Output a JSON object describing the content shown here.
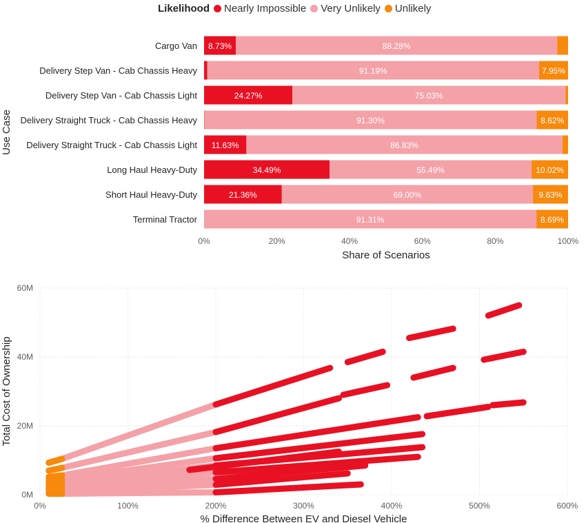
{
  "legend": {
    "title": "Likelihood",
    "items": [
      {
        "label": "Nearly Impossible",
        "color": "#E81123"
      },
      {
        "label": "Very Unlikely",
        "color": "#F4A1A8"
      },
      {
        "label": "Unlikely",
        "color": "#F7890C"
      }
    ]
  },
  "chart_data": [
    {
      "type": "bar",
      "orientation": "horizontal-stacked-100",
      "ylabel": "Use Case",
      "xlabel": "Share of Scenarios",
      "x_ticks": [
        "0%",
        "20%",
        "40%",
        "60%",
        "80%",
        "100%"
      ],
      "xlim": [
        0,
        100
      ],
      "categories": [
        "Cargo Van",
        "Delivery Step Van - Cab Chassis Heavy",
        "Delivery Step Van - Cab Chassis Light",
        "Delivery Straight Truck - Cab Chassis Heavy",
        "Delivery Straight Truck - Cab Chassis Light",
        "Long Haul Heavy-Duty",
        "Short Haul Heavy-Duty",
        "Terminal Tractor"
      ],
      "series": [
        {
          "name": "Nearly Impossible",
          "color": "#E81123",
          "values": [
            8.73,
            0.86,
            24.27,
            0.08,
            11.63,
            34.49,
            21.36,
            0.0
          ],
          "labels": [
            "8.73%",
            "",
            "24.27%",
            "",
            "11.63%",
            "34.49%",
            "21.36%",
            ""
          ]
        },
        {
          "name": "Very Unlikely",
          "color": "#F4A1A8",
          "values": [
            88.28,
            91.19,
            75.03,
            91.3,
            86.83,
            55.49,
            69.0,
            91.31
          ],
          "labels": [
            "88.28%",
            "91.19%",
            "75.03%",
            "91.30%",
            "86.83%",
            "55.49%",
            "69.00%",
            "91.31%"
          ]
        },
        {
          "name": "Unlikely",
          "color": "#F7890C",
          "values": [
            2.99,
            7.95,
            0.7,
            8.62,
            1.54,
            10.02,
            9.63,
            8.69
          ],
          "labels": [
            "",
            "7.95%",
            "",
            "8.62%",
            "",
            "10.02%",
            "9.63%",
            "8.69%"
          ]
        }
      ]
    },
    {
      "type": "scatter",
      "xlabel": "% Difference Between EV and Diesel Vehicle",
      "ylabel": "Total Cost of Ownership",
      "xlim": [
        0,
        600
      ],
      "ylim": [
        0,
        60000000
      ],
      "x_ticks": [
        "0%",
        "100%",
        "200%",
        "300%",
        "400%",
        "500%",
        "600%"
      ],
      "y_ticks": [
        "0M",
        "20M",
        "40M",
        "60M"
      ],
      "grid": true,
      "series": [
        {
          "name": "Unlikely",
          "color": "#F7890C",
          "segments": [
            [
              10,
              9300000,
              25,
              10400000
            ],
            [
              10,
              7000000,
              25,
              7800000
            ],
            [
              10,
              5200000,
              25,
              5600000
            ],
            [
              10,
              4200000,
              25,
              4400000
            ],
            [
              10,
              3400000,
              25,
              3500000
            ],
            [
              10,
              2600000,
              25,
              2600000
            ],
            [
              10,
              1800000,
              25,
              1800000
            ],
            [
              10,
              1000000,
              25,
              900000
            ],
            [
              10,
              300000,
              25,
              300000
            ]
          ]
        },
        {
          "name": "Very Unlikely",
          "color": "#F4A1A8",
          "segments": [
            [
              25,
              10400000,
              200,
              26200000
            ],
            [
              25,
              7800000,
              200,
              18200000
            ],
            [
              25,
              5600000,
              200,
              13500000
            ],
            [
              25,
              4400000,
              200,
              10600000
            ],
            [
              25,
              3500000,
              200,
              8500000
            ],
            [
              25,
              2600000,
              200,
              6500000
            ],
            [
              25,
              1800000,
              200,
              4600000
            ],
            [
              25,
              900000,
              200,
              2900000
            ],
            [
              25,
              300000,
              200,
              700000
            ]
          ]
        },
        {
          "name": "Nearly Impossible",
          "color": "#E81123",
          "segments": [
            [
              200,
              26200000,
              330,
              36800000
            ],
            [
              350,
              38500000,
              390,
              41500000
            ],
            [
              420,
              45500000,
              470,
              48200000
            ],
            [
              510,
              52000000,
              545,
              55000000
            ],
            [
              200,
              18200000,
              340,
              28000000
            ],
            [
              345,
              29000000,
              395,
              31800000
            ],
            [
              425,
              34000000,
              470,
              36800000
            ],
            [
              505,
              39200000,
              550,
              41500000
            ],
            [
              200,
              13500000,
              430,
              22500000
            ],
            [
              440,
              22800000,
              510,
              25500000
            ],
            [
              515,
              26000000,
              550,
              26800000
            ],
            [
              200,
              10600000,
              435,
              17600000
            ],
            [
              200,
              8500000,
              435,
              13800000
            ],
            [
              170,
              7200000,
              340,
              12500000
            ],
            [
              200,
              6500000,
              430,
              11000000
            ],
            [
              200,
              4600000,
              370,
              8500000
            ],
            [
              200,
              2900000,
              350,
              6200000
            ],
            [
              200,
              700000,
              365,
              3000000
            ]
          ]
        }
      ]
    }
  ]
}
